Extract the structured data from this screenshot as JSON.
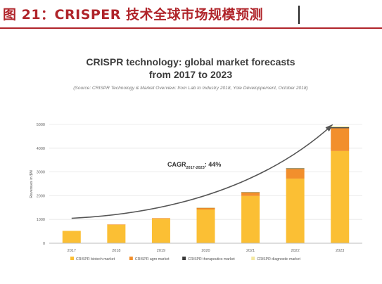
{
  "report": {
    "figure_title": "图 21：CRISPER 技术全球市场规模预测"
  },
  "chart_data": {
    "type": "bar",
    "stacked": true,
    "title": "CRISPR technology: global market forecasts",
    "title_line2": "from 2017 to 2023",
    "subtitle": "(Source: CRISPR Technology & Market Overview: from Lab to Industry 2018, Yole Développement, October 2018)",
    "ylabel": "Revenues in $M",
    "xlabel": "",
    "categories": [
      "2017",
      "2018",
      "2019",
      "2020",
      "2021",
      "2022",
      "2023"
    ],
    "yticks": [
      "0",
      "1000",
      "2000",
      "3000",
      "4000",
      "5000"
    ],
    "ylim": [
      0,
      5000
    ],
    "grid": true,
    "legend_position": "bottom",
    "series": [
      {
        "name": "CRISPR biotech market",
        "color": "#fbbf34",
        "values": [
          520,
          780,
          1030,
          1420,
          1990,
          2720,
          3880
        ]
      },
      {
        "name": "CRISPR agro market",
        "color": "#f28f2c",
        "values": [
          0,
          10,
          25,
          70,
          150,
          410,
          960
        ]
      },
      {
        "name": "CRISPR therapeutics market",
        "color": "#3a3a3a",
        "values": [
          0,
          0,
          0,
          5,
          10,
          20,
          40
        ]
      },
      {
        "name": "CRISPR diagnostic market",
        "color": "#f3e7a0",
        "values": [
          0,
          0,
          0,
          5,
          10,
          20,
          40
        ]
      }
    ],
    "annotation": {
      "text_main": "CAGR",
      "text_sub": "2017-2023",
      "text_value": ": 44%",
      "trend_start_value": 1050,
      "trend_end_value": 4950
    }
  }
}
